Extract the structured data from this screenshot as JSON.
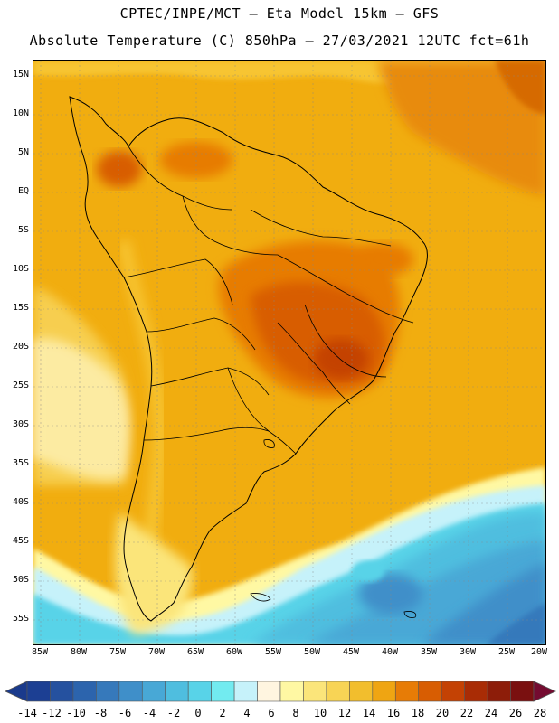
{
  "header": {
    "title_line1": "CPTEC/INPE/MCT –  Eta Model 15km – GFS",
    "title_line2": "Absolute Temperature (C) 850hPa – 27/03/2021 12UTC fct=61h"
  },
  "map": {
    "region": "South America",
    "lat_ticks": [
      "15N",
      "10N",
      "5N",
      "EQ",
      "5S",
      "10S",
      "15S",
      "20S",
      "25S",
      "30S",
      "35S",
      "40S",
      "45S",
      "50S",
      "55S"
    ],
    "lon_ticks": [
      "85W",
      "80W",
      "75W",
      "70W",
      "65W",
      "60W",
      "55W",
      "50W",
      "45W",
      "40W",
      "35W",
      "30W",
      "25W",
      "20W"
    ]
  },
  "colorbar": {
    "labels": [
      "-14",
      "-12",
      "-10",
      "-8",
      "-6",
      "-4",
      "-2",
      "0",
      "2",
      "4",
      "6",
      "8",
      "10",
      "12",
      "14",
      "16",
      "18",
      "20",
      "22",
      "24",
      "26",
      "28"
    ],
    "colors": [
      "#1c3f93",
      "#25519f",
      "#2c64ad",
      "#3679bb",
      "#3f8fc9",
      "#48a8d6",
      "#4fbedf",
      "#58d3e8",
      "#72ebf0",
      "#c6f2fa",
      "#fff5e0",
      "#fff8a3",
      "#fbe57a",
      "#f8d455",
      "#f2be2d",
      "#efa512",
      "#e77c06",
      "#d85d02",
      "#c44204",
      "#a92c05",
      "#8d1d09",
      "#7a1010"
    ],
    "under_color": "#1a3a8c",
    "over_color": "#740b30"
  },
  "colors": {
    "background": "#ffffff",
    "ocean_warm": "#f1ad0f",
    "ocean_cold": "#48a8d6"
  }
}
